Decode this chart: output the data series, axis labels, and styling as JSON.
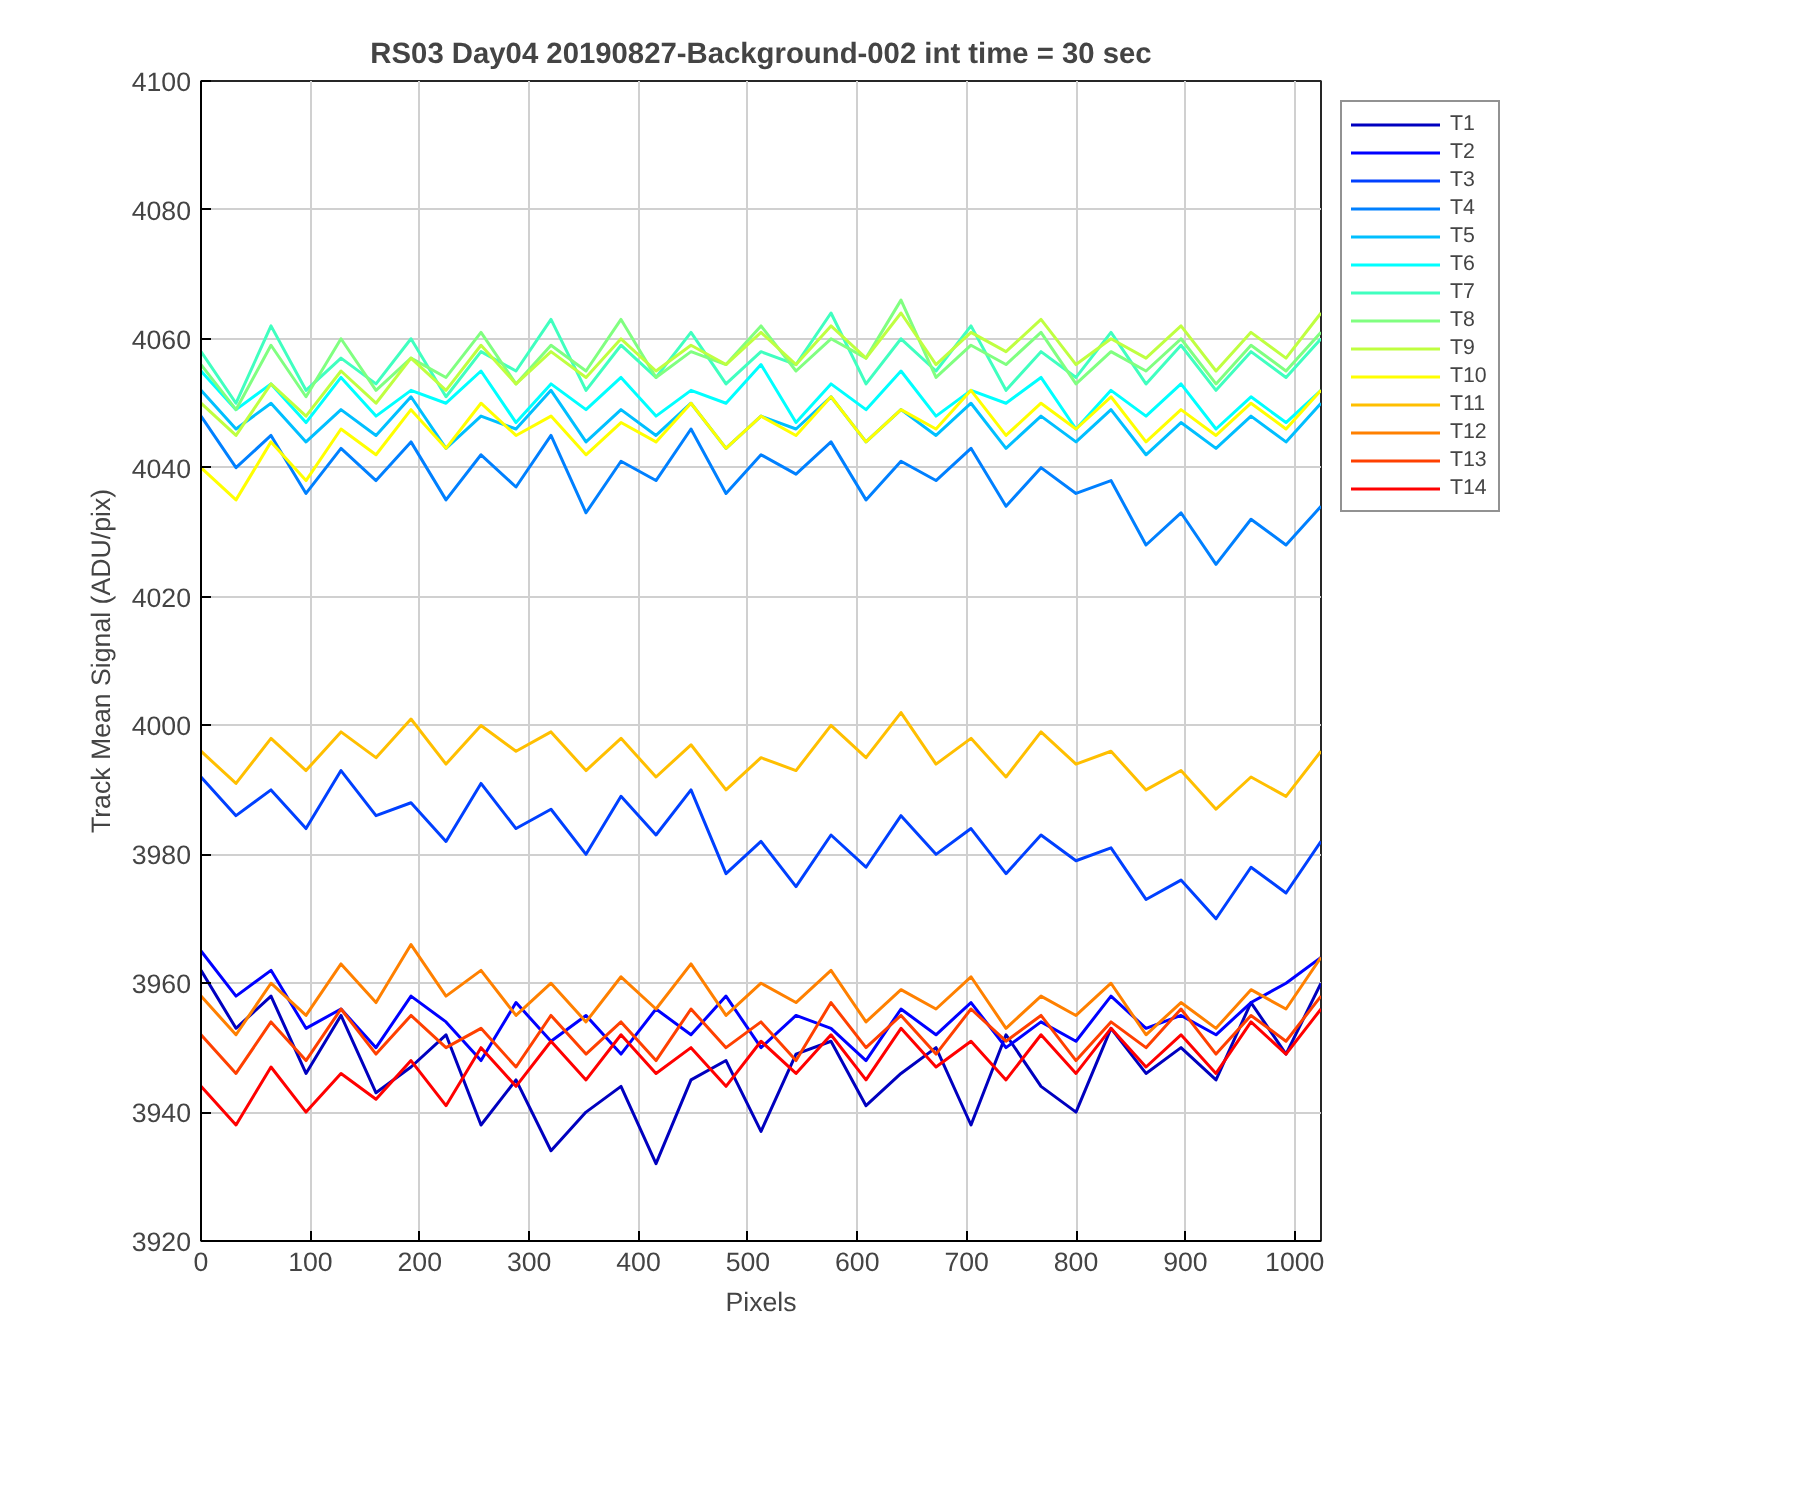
{
  "chart_data": {
    "type": "line",
    "title": "RS03 Day04 20190827-Background-002 int time = 30 sec",
    "xlabel": "Pixels",
    "ylabel": "Track Mean Signal (ADU/pix)",
    "x": [
      0,
      32,
      64,
      96,
      128,
      160,
      192,
      224,
      256,
      288,
      320,
      352,
      384,
      416,
      448,
      480,
      512,
      544,
      576,
      608,
      640,
      672,
      704,
      736,
      768,
      800,
      832,
      864,
      896,
      928,
      960,
      992,
      1024
    ],
    "xlim": [
      0,
      1024
    ],
    "xticks": [
      0,
      100,
      200,
      300,
      400,
      500,
      600,
      700,
      800,
      900,
      1000
    ],
    "ylim": [
      3920,
      4100
    ],
    "yticks": [
      3920,
      3940,
      3960,
      3980,
      4000,
      4020,
      4040,
      4060,
      4080,
      4100
    ],
    "grid": true,
    "legend": "top right",
    "line_style": "solid",
    "series": [
      {
        "name": "T1",
        "color": "#0000bf",
        "values": [
          3962,
          3953,
          3958,
          3946,
          3955,
          3943,
          3947,
          3952,
          3938,
          3945,
          3934,
          3940,
          3944,
          3932,
          3945,
          3948,
          3937,
          3949,
          3951,
          3941,
          3946,
          3950,
          3938,
          3952,
          3944,
          3940,
          3953,
          3946,
          3950,
          3945,
          3957,
          3949,
          3960
        ]
      },
      {
        "name": "T2",
        "color": "#0000ff",
        "values": [
          3965,
          3958,
          3962,
          3953,
          3956,
          3950,
          3958,
          3954,
          3948,
          3957,
          3951,
          3955,
          3949,
          3956,
          3952,
          3958,
          3950,
          3955,
          3953,
          3948,
          3956,
          3952,
          3957,
          3950,
          3954,
          3951,
          3958,
          3953,
          3955,
          3952,
          3957,
          3960,
          3964
        ]
      },
      {
        "name": "T3",
        "color": "#0040ff",
        "values": [
          3992,
          3986,
          3990,
          3984,
          3993,
          3986,
          3988,
          3982,
          3991,
          3984,
          3987,
          3980,
          3989,
          3983,
          3990,
          3977,
          3982,
          3975,
          3983,
          3978,
          3986,
          3980,
          3984,
          3977,
          3983,
          3979,
          3981,
          3973,
          3976,
          3970,
          3978,
          3974,
          3982
        ]
      },
      {
        "name": "T4",
        "color": "#0080ff",
        "values": [
          4048,
          4040,
          4045,
          4036,
          4043,
          4038,
          4044,
          4035,
          4042,
          4037,
          4045,
          4033,
          4041,
          4038,
          4046,
          4036,
          4042,
          4039,
          4044,
          4035,
          4041,
          4038,
          4043,
          4034,
          4040,
          4036,
          4038,
          4028,
          4033,
          4025,
          4032,
          4028,
          4034
        ]
      },
      {
        "name": "T5",
        "color": "#00bfff",
        "values": [
          4052,
          4046,
          4050,
          4044,
          4049,
          4045,
          4051,
          4043,
          4048,
          4046,
          4052,
          4044,
          4049,
          4045,
          4050,
          4043,
          4048,
          4046,
          4051,
          4044,
          4049,
          4045,
          4050,
          4043,
          4048,
          4044,
          4049,
          4042,
          4047,
          4043,
          4048,
          4044,
          4050
        ]
      },
      {
        "name": "T6",
        "color": "#00ffff",
        "values": [
          4055,
          4049,
          4053,
          4047,
          4054,
          4048,
          4052,
          4050,
          4055,
          4047,
          4053,
          4049,
          4054,
          4048,
          4052,
          4050,
          4056,
          4047,
          4053,
          4049,
          4055,
          4048,
          4052,
          4050,
          4054,
          4046,
          4052,
          4048,
          4053,
          4046,
          4051,
          4047,
          4052
        ]
      },
      {
        "name": "T7",
        "color": "#40ffbf",
        "values": [
          4058,
          4050,
          4062,
          4052,
          4057,
          4053,
          4060,
          4051,
          4058,
          4055,
          4063,
          4052,
          4059,
          4054,
          4061,
          4053,
          4058,
          4056,
          4064,
          4053,
          4060,
          4055,
          4062,
          4052,
          4058,
          4054,
          4061,
          4053,
          4059,
          4052,
          4058,
          4054,
          4060
        ]
      },
      {
        "name": "T8",
        "color": "#80ff80",
        "values": [
          4056,
          4049,
          4059,
          4051,
          4060,
          4052,
          4057,
          4054,
          4061,
          4053,
          4059,
          4055,
          4063,
          4054,
          4058,
          4056,
          4062,
          4055,
          4060,
          4057,
          4066,
          4054,
          4059,
          4056,
          4061,
          4053,
          4058,
          4055,
          4060,
          4053,
          4059,
          4055,
          4061
        ]
      },
      {
        "name": "T9",
        "color": "#bfff40",
        "values": [
          4050,
          4045,
          4053,
          4048,
          4055,
          4050,
          4057,
          4052,
          4059,
          4053,
          4058,
          4054,
          4060,
          4055,
          4059,
          4056,
          4061,
          4056,
          4062,
          4057,
          4064,
          4056,
          4061,
          4058,
          4063,
          4056,
          4060,
          4057,
          4062,
          4055,
          4061,
          4057,
          4064
        ]
      },
      {
        "name": "T10",
        "color": "#ffff00",
        "values": [
          4040,
          4035,
          4044,
          4038,
          4046,
          4042,
          4049,
          4043,
          4050,
          4045,
          4048,
          4042,
          4047,
          4044,
          4050,
          4043,
          4048,
          4045,
          4051,
          4044,
          4049,
          4046,
          4052,
          4045,
          4050,
          4046,
          4051,
          4044,
          4049,
          4045,
          4050,
          4046,
          4052
        ]
      },
      {
        "name": "T11",
        "color": "#ffbf00",
        "values": [
          3996,
          3991,
          3998,
          3993,
          3999,
          3995,
          4001,
          3994,
          4000,
          3996,
          3999,
          3993,
          3998,
          3992,
          3997,
          3990,
          3995,
          3993,
          4000,
          3995,
          4002,
          3994,
          3998,
          3992,
          3999,
          3994,
          3996,
          3990,
          3993,
          3987,
          3992,
          3989,
          3996
        ]
      },
      {
        "name": "T12",
        "color": "#ff8000",
        "values": [
          3958,
          3952,
          3960,
          3955,
          3963,
          3957,
          3966,
          3958,
          3962,
          3955,
          3960,
          3954,
          3961,
          3956,
          3963,
          3955,
          3960,
          3957,
          3962,
          3954,
          3959,
          3956,
          3961,
          3953,
          3958,
          3955,
          3960,
          3952,
          3957,
          3953,
          3959,
          3956,
          3964
        ]
      },
      {
        "name": "T13",
        "color": "#ff4000",
        "values": [
          3952,
          3946,
          3954,
          3948,
          3956,
          3949,
          3955,
          3950,
          3953,
          3947,
          3955,
          3949,
          3954,
          3948,
          3956,
          3950,
          3954,
          3948,
          3957,
          3950,
          3955,
          3949,
          3956,
          3951,
          3955,
          3948,
          3954,
          3950,
          3956,
          3949,
          3955,
          3951,
          3958
        ]
      },
      {
        "name": "T14",
        "color": "#ff0000",
        "values": [
          3944,
          3938,
          3947,
          3940,
          3946,
          3942,
          3948,
          3941,
          3950,
          3944,
          3951,
          3945,
          3952,
          3946,
          3950,
          3944,
          3951,
          3946,
          3952,
          3945,
          3953,
          3947,
          3951,
          3945,
          3952,
          3946,
          3953,
          3947,
          3952,
          3946,
          3954,
          3949,
          3956
        ]
      }
    ]
  }
}
